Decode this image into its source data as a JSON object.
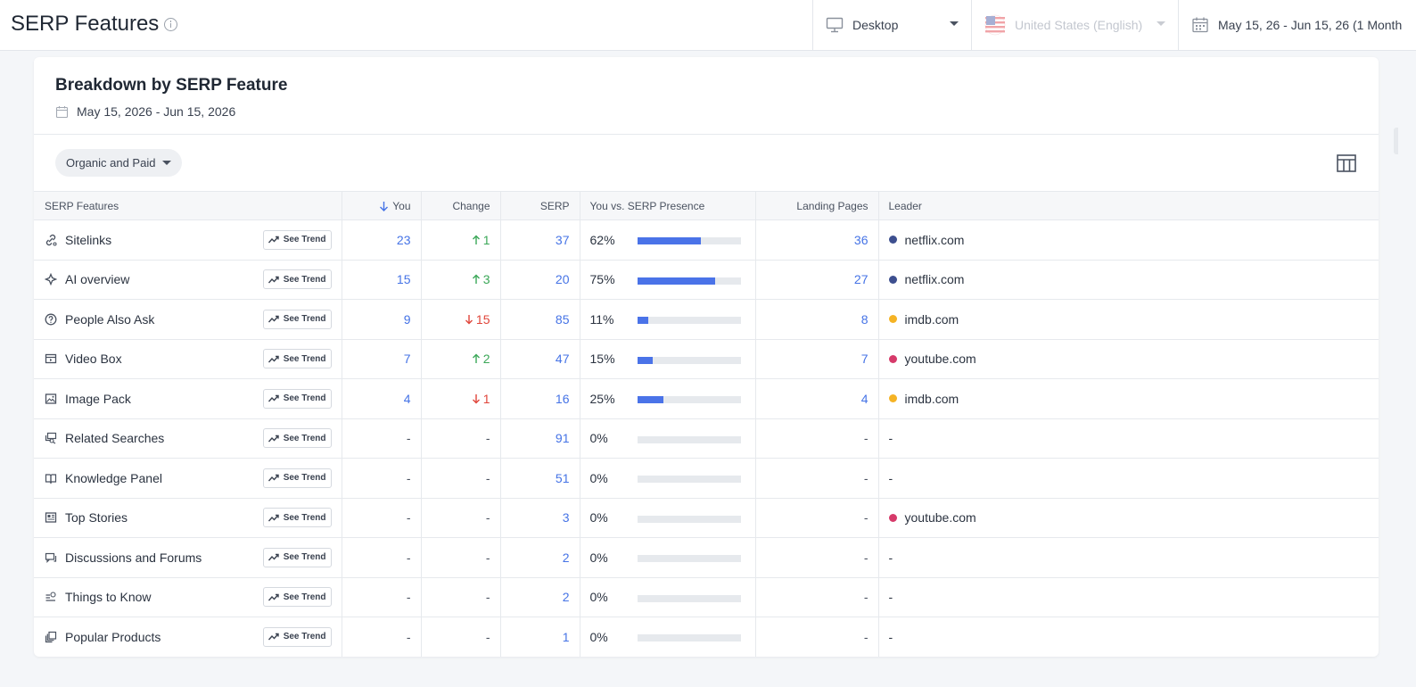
{
  "header": {
    "title": "SERP Features",
    "device": "Desktop",
    "country": "United States (English)",
    "date_range": "May 15, 26 - Jun 15, 26 (1 Month"
  },
  "card": {
    "title": "Breakdown by SERP Feature",
    "date": "May 15, 2026 - Jun 15, 2026",
    "filter": "Organic and Paid"
  },
  "table": {
    "headers": {
      "features": "SERP Features",
      "you": "You",
      "change": "Change",
      "serp": "SERP",
      "presence": "You vs. SERP Presence",
      "landing": "Landing Pages",
      "leader": "Leader"
    },
    "trend_label": "See Trend",
    "rows": [
      {
        "icon": "sitelinks-icon",
        "name": "Sitelinks",
        "you": "23",
        "change": "1",
        "dir": "up",
        "serp": "37",
        "pct": "62%",
        "fill": 0.62,
        "landing": "36",
        "leader": "netflix.com",
        "color": "#3d4f8f"
      },
      {
        "icon": "ai-overview-icon",
        "name": "AI overview",
        "you": "15",
        "change": "3",
        "dir": "up",
        "serp": "20",
        "pct": "75%",
        "fill": 0.75,
        "landing": "27",
        "leader": "netflix.com",
        "color": "#3d4f8f"
      },
      {
        "icon": "question-icon",
        "name": "People Also Ask",
        "you": "9",
        "change": "15",
        "dir": "down",
        "serp": "85",
        "pct": "11%",
        "fill": 0.11,
        "landing": "8",
        "leader": "imdb.com",
        "color": "#f5b324"
      },
      {
        "icon": "video-icon",
        "name": "Video Box",
        "you": "7",
        "change": "2",
        "dir": "up",
        "serp": "47",
        "pct": "15%",
        "fill": 0.15,
        "landing": "7",
        "leader": "youtube.com",
        "color": "#d63a6a"
      },
      {
        "icon": "image-icon",
        "name": "Image Pack",
        "you": "4",
        "change": "1",
        "dir": "down",
        "serp": "16",
        "pct": "25%",
        "fill": 0.25,
        "landing": "4",
        "leader": "imdb.com",
        "color": "#f5b324"
      },
      {
        "icon": "related-searches-icon",
        "name": "Related Searches",
        "you": "-",
        "change": "-",
        "dir": "none",
        "serp": "91",
        "pct": "0%",
        "fill": 0,
        "landing": "-",
        "leader": "-",
        "color": ""
      },
      {
        "icon": "book-icon",
        "name": "Knowledge Panel",
        "you": "-",
        "change": "-",
        "dir": "none",
        "serp": "51",
        "pct": "0%",
        "fill": 0,
        "landing": "-",
        "leader": "-",
        "color": ""
      },
      {
        "icon": "news-icon",
        "name": "Top Stories",
        "you": "-",
        "change": "-",
        "dir": "none",
        "serp": "3",
        "pct": "0%",
        "fill": 0,
        "landing": "-",
        "leader": "youtube.com",
        "color": "#d63a6a"
      },
      {
        "icon": "chat-icon",
        "name": "Discussions and Forums",
        "you": "-",
        "change": "-",
        "dir": "none",
        "serp": "2",
        "pct": "0%",
        "fill": 0,
        "landing": "-",
        "leader": "-",
        "color": ""
      },
      {
        "icon": "list-search-icon",
        "name": "Things to Know",
        "you": "-",
        "change": "-",
        "dir": "none",
        "serp": "2",
        "pct": "0%",
        "fill": 0,
        "landing": "-",
        "leader": "-",
        "color": ""
      },
      {
        "icon": "products-icon",
        "name": "Popular Products",
        "you": "-",
        "change": "-",
        "dir": "none",
        "serp": "1",
        "pct": "0%",
        "fill": 0,
        "landing": "-",
        "leader": "-",
        "color": ""
      }
    ]
  }
}
